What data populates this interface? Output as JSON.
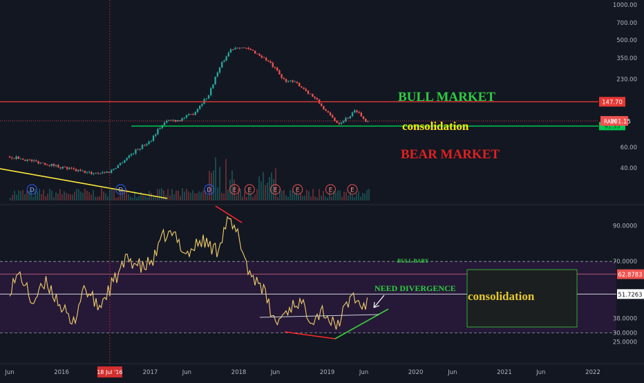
{
  "chart_data": [
    {
      "type": "candlestick",
      "symbol": "RAIN",
      "yscale": "log",
      "ylim": [
        30,
        1000
      ],
      "y_ticks": [
        "1000.00",
        "700.00",
        "500.00",
        "350.00",
        "230.00",
        "60.00",
        "40.00"
      ],
      "last_price": "101.15",
      "last_price_label": "RAIN",
      "resistance": "147.70",
      "support": "91.35",
      "support_label": "91.35",
      "series": [
        {
          "values": [
            {
              "x": "2015-06-01",
              "y": 50
            },
            {
              "x": "2015-09-01",
              "y": 46
            },
            {
              "x": "2015-12-01",
              "y": 42
            },
            {
              "x": "2016-03-01",
              "y": 38
            },
            {
              "x": "2016-05-01",
              "y": 36
            },
            {
              "x": "2016-07-18",
              "y": 37
            },
            {
              "x": "2016-09-01",
              "y": 44
            },
            {
              "x": "2016-11-01",
              "y": 56
            },
            {
              "x": "2017-01-01",
              "y": 68
            },
            {
              "x": "2017-02-15",
              "y": 92
            },
            {
              "x": "2017-03-15",
              "y": 102
            },
            {
              "x": "2017-05-01",
              "y": 103
            },
            {
              "x": "2017-07-01",
              "y": 118
            },
            {
              "x": "2017-09-01",
              "y": 170
            },
            {
              "x": "2017-10-15",
              "y": 290
            },
            {
              "x": "2017-12-01",
              "y": 420
            },
            {
              "x": "2018-01-01",
              "y": 440
            },
            {
              "x": "2018-03-01",
              "y": 400
            },
            {
              "x": "2018-05-01",
              "y": 330
            },
            {
              "x": "2018-07-01",
              "y": 230
            },
            {
              "x": "2018-09-01",
              "y": 210
            },
            {
              "x": "2018-11-01",
              "y": 165
            },
            {
              "x": "2019-01-01",
              "y": 118
            },
            {
              "x": "2019-02-15",
              "y": 96
            },
            {
              "x": "2019-04-01",
              "y": 110
            },
            {
              "x": "2019-05-01",
              "y": 126
            },
            {
              "x": "2019-06-01",
              "y": 104
            },
            {
              "x": "2019-06-20",
              "y": 101
            }
          ]
        }
      ],
      "event_markers": [
        {
          "x": "2015-09-01",
          "label": "D"
        },
        {
          "x": "2016-09-01",
          "label": "D"
        },
        {
          "x": "2017-09-01",
          "label": "D"
        },
        {
          "x": "2017-12-15",
          "label": "E"
        },
        {
          "x": "2018-02-15",
          "label": "E"
        },
        {
          "x": "2018-06-01",
          "label": "E"
        },
        {
          "x": "2018-09-01",
          "label": "E"
        },
        {
          "x": "2019-01-15",
          "label": "E"
        },
        {
          "x": "2019-04-15",
          "label": "E"
        }
      ],
      "annotations": [
        "BULL MARKET",
        "consolidation",
        "BEAR MARKET"
      ]
    },
    {
      "type": "line",
      "ylim": [
        22,
        98
      ],
      "y_ticks": [
        "90.0000",
        "70.0000",
        "38.0000",
        "30.0000",
        "25.0000"
      ],
      "levels": {
        "upper": 70,
        "middle": 51.7263,
        "lower": 30
      },
      "current_value": "51.7263",
      "highlight_value": "62.8783",
      "series": [
        {
          "values": [
            {
              "x": "2015-06-01",
              "y": 55
            },
            {
              "x": "2015-07-15",
              "y": 63
            },
            {
              "x": "2015-09-01",
              "y": 47
            },
            {
              "x": "2015-11-01",
              "y": 58
            },
            {
              "x": "2016-01-01",
              "y": 45
            },
            {
              "x": "2016-02-15",
              "y": 33
            },
            {
              "x": "2016-04-01",
              "y": 56
            },
            {
              "x": "2016-06-01",
              "y": 44
            },
            {
              "x": "2016-08-01",
              "y": 58
            },
            {
              "x": "2016-10-01",
              "y": 72
            },
            {
              "x": "2016-12-01",
              "y": 66
            },
            {
              "x": "2017-01-15",
              "y": 71
            },
            {
              "x": "2017-03-01",
              "y": 85
            },
            {
              "x": "2017-04-15",
              "y": 84
            },
            {
              "x": "2017-06-01",
              "y": 74
            },
            {
              "x": "2017-08-01",
              "y": 82
            },
            {
              "x": "2017-10-01",
              "y": 76
            },
            {
              "x": "2017-11-15",
              "y": 93
            },
            {
              "x": "2018-01-01",
              "y": 84
            },
            {
              "x": "2018-02-15",
              "y": 63
            },
            {
              "x": "2018-04-01",
              "y": 58
            },
            {
              "x": "2018-06-01",
              "y": 35
            },
            {
              "x": "2018-07-15",
              "y": 42
            },
            {
              "x": "2018-09-01",
              "y": 48
            },
            {
              "x": "2018-11-01",
              "y": 38
            },
            {
              "x": "2018-12-15",
              "y": 43
            },
            {
              "x": "2019-02-01",
              "y": 33
            },
            {
              "x": "2019-03-01",
              "y": 39
            },
            {
              "x": "2019-04-15",
              "y": 52
            },
            {
              "x": "2019-05-15",
              "y": 45
            },
            {
              "x": "2019-06-20",
              "y": 46
            }
          ]
        }
      ],
      "annotations": [
        "BULL BABY",
        "NEED DIVERGENCE",
        "consolidation"
      ]
    }
  ],
  "x_axis": {
    "ticks": [
      {
        "x": "2015-06-01",
        "label": "Jun"
      },
      {
        "x": "2016-01-01",
        "label": "2016"
      },
      {
        "x": "2017-01-01",
        "label": "2017"
      },
      {
        "x": "2017-06-01",
        "label": "Jun"
      },
      {
        "x": "2018-01-01",
        "label": "2018"
      },
      {
        "x": "2018-06-01",
        "label": "Jun"
      },
      {
        "x": "2019-01-01",
        "label": "2019"
      },
      {
        "x": "2019-06-01",
        "label": "Jun"
      },
      {
        "x": "2020-01-01",
        "label": "2020"
      },
      {
        "x": "2020-06-01",
        "label": "Jun"
      },
      {
        "x": "2021-01-01",
        "label": "2021"
      },
      {
        "x": "2021-06-01",
        "label": "Jun"
      },
      {
        "x": "2022-01-01",
        "label": "2022"
      }
    ],
    "crosshair": {
      "x": "2016-07-18",
      "label": "18 Jul '16"
    }
  },
  "colors": {
    "background": "#131722",
    "up": "#26a69a",
    "down": "#ef5350",
    "resistance": "#e53935",
    "support": "#00c853",
    "bull_text": "#2ecc40",
    "bear_text": "#e02020",
    "consolidation_text": "#ffe600",
    "downtrend": "#ffeb3b",
    "rsi_line": "#f3cf6a",
    "rsi_band": "#2b1a3d",
    "divergence_red": "#ff2a2a",
    "divergence_green": "#3ccf3c",
    "highlight_label": "#ef5350",
    "price_label": "#ef5350"
  }
}
